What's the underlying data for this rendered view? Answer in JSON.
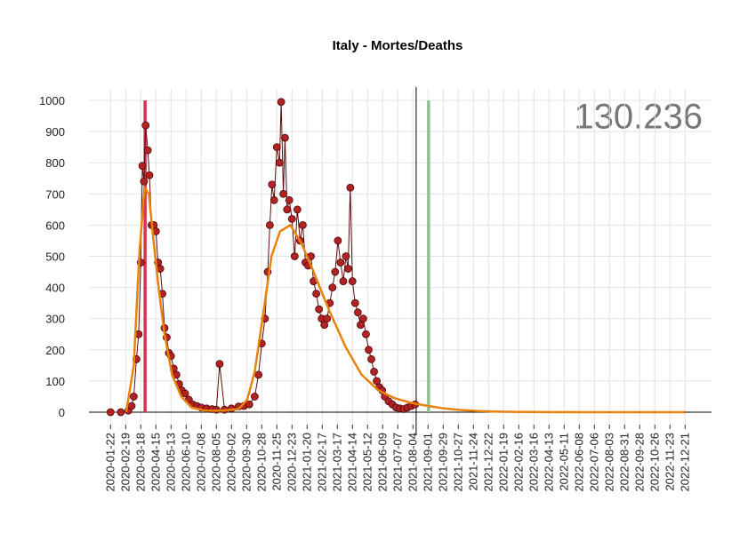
{
  "chart_data": {
    "type": "line",
    "title": "Italy - Mortes/Deaths",
    "annotation": "130.236",
    "grid": true,
    "ylim": [
      0,
      1000
    ],
    "yticks": [
      0,
      100,
      200,
      300,
      400,
      500,
      600,
      700,
      800,
      900,
      1000
    ],
    "xlim": [
      "2019-12-13",
      "2023-02-08"
    ],
    "xticks": [
      "2020-01-22",
      "2020-02-19",
      "2020-03-18",
      "2020-04-15",
      "2020-05-13",
      "2020-06-10",
      "2020-07-08",
      "2020-08-05",
      "2020-09-02",
      "2020-09-30",
      "2020-10-28",
      "2020-11-25",
      "2020-12-23",
      "2021-01-20",
      "2021-02-17",
      "2021-03-17",
      "2021-04-14",
      "2021-05-12",
      "2021-06-09",
      "2021-07-07",
      "2021-08-04",
      "2021-09-01",
      "2021-09-29",
      "2021-10-27",
      "2021-11-24",
      "2021-12-22",
      "2022-01-19",
      "2022-02-16",
      "2022-03-16",
      "2022-04-13",
      "2022-05-11",
      "2022-06-08",
      "2022-07-06",
      "2022-08-03",
      "2022-08-31",
      "2022-09-28",
      "2022-10-26",
      "2022-11-23",
      "2022-12-21"
    ],
    "vlines": [
      {
        "x": "2020-03-26",
        "color": "#d0384f"
      },
      {
        "x": "2021-08-10",
        "color": "#000000"
      },
      {
        "x": "2021-09-02",
        "color": "#8fc08f"
      }
    ],
    "series": [
      {
        "color": "#b22222",
        "markers": true,
        "x": [
          "2020-01-22",
          "2020-02-10",
          "2020-02-24",
          "2020-03-01",
          "2020-03-05",
          "2020-03-10",
          "2020-03-14",
          "2020-03-18",
          "2020-03-21",
          "2020-03-24",
          "2020-03-27",
          "2020-03-31",
          "2020-04-03",
          "2020-04-07",
          "2020-04-11",
          "2020-04-15",
          "2020-04-19",
          "2020-04-23",
          "2020-04-27",
          "2020-05-01",
          "2020-05-05",
          "2020-05-09",
          "2020-05-13",
          "2020-05-18",
          "2020-05-23",
          "2020-05-28",
          "2020-06-02",
          "2020-06-08",
          "2020-06-15",
          "2020-06-22",
          "2020-06-30",
          "2020-07-08",
          "2020-07-18",
          "2020-07-28",
          "2020-08-05",
          "2020-08-11",
          "2020-08-20",
          "2020-09-02",
          "2020-09-15",
          "2020-09-25",
          "2020-10-05",
          "2020-10-15",
          "2020-10-22",
          "2020-10-28",
          "2020-11-03",
          "2020-11-08",
          "2020-11-12",
          "2020-11-16",
          "2020-11-20",
          "2020-11-25",
          "2020-11-30",
          "2020-12-03",
          "2020-12-07",
          "2020-12-10",
          "2020-12-14",
          "2020-12-18",
          "2020-12-23",
          "2020-12-28",
          "2021-01-02",
          "2021-01-07",
          "2021-01-12",
          "2021-01-17",
          "2021-01-22",
          "2021-01-27",
          "2021-02-01",
          "2021-02-06",
          "2021-02-11",
          "2021-02-16",
          "2021-02-21",
          "2021-02-26",
          "2021-03-03",
          "2021-03-08",
          "2021-03-13",
          "2021-03-18",
          "2021-03-23",
          "2021-03-28",
          "2021-04-02",
          "2021-04-06",
          "2021-04-10",
          "2021-04-14",
          "2021-04-19",
          "2021-04-24",
          "2021-04-29",
          "2021-05-04",
          "2021-05-09",
          "2021-05-14",
          "2021-05-19",
          "2021-05-24",
          "2021-05-29",
          "2021-06-03",
          "2021-06-08",
          "2021-06-13",
          "2021-06-20",
          "2021-06-27",
          "2021-07-04",
          "2021-07-11",
          "2021-07-18",
          "2021-07-25",
          "2021-08-01",
          "2021-08-08"
        ],
        "values": [
          0,
          0,
          5,
          20,
          50,
          170,
          250,
          480,
          790,
          740,
          920,
          840,
          760,
          600,
          600,
          580,
          480,
          460,
          380,
          270,
          240,
          190,
          180,
          140,
          120,
          90,
          70,
          60,
          40,
          25,
          20,
          15,
          12,
          10,
          8,
          155,
          8,
          12,
          18,
          20,
          25,
          50,
          120,
          220,
          300,
          450,
          600,
          730,
          680,
          850,
          800,
          995,
          700,
          880,
          650,
          680,
          620,
          500,
          650,
          550,
          600,
          480,
          470,
          500,
          420,
          380,
          330,
          300,
          280,
          300,
          350,
          400,
          450,
          550,
          480,
          420,
          500,
          460,
          720,
          420,
          350,
          320,
          280,
          300,
          250,
          200,
          170,
          130,
          100,
          80,
          70,
          50,
          35,
          25,
          15,
          12,
          10,
          15,
          20,
          25
        ]
      },
      {
        "color": "#e8820c",
        "markers": false,
        "x": [
          "2020-02-20",
          "2020-03-05",
          "2020-03-15",
          "2020-03-25",
          "2020-04-02",
          "2020-04-10",
          "2020-04-20",
          "2020-05-01",
          "2020-05-15",
          "2020-06-01",
          "2020-06-20",
          "2020-07-15",
          "2020-08-15",
          "2020-09-15",
          "2020-10-01",
          "2020-10-15",
          "2020-11-01",
          "2020-11-15",
          "2020-12-01",
          "2020-12-20",
          "2021-01-10",
          "2021-02-01",
          "2021-03-01",
          "2021-04-01",
          "2021-05-01",
          "2021-06-01",
          "2021-07-01",
          "2021-08-01",
          "2021-09-01",
          "2021-10-01",
          "2021-11-01",
          "2021-12-01",
          "2022-01-01",
          "2022-02-01",
          "2022-06-01",
          "2022-12-21"
        ],
        "values": [
          0,
          150,
          500,
          720,
          700,
          560,
          400,
          250,
          120,
          50,
          15,
          5,
          5,
          10,
          40,
          130,
          330,
          500,
          580,
          600,
          540,
          450,
          330,
          210,
          120,
          70,
          45,
          30,
          20,
          12,
          7,
          4,
          2,
          1,
          0,
          0
        ]
      }
    ]
  }
}
